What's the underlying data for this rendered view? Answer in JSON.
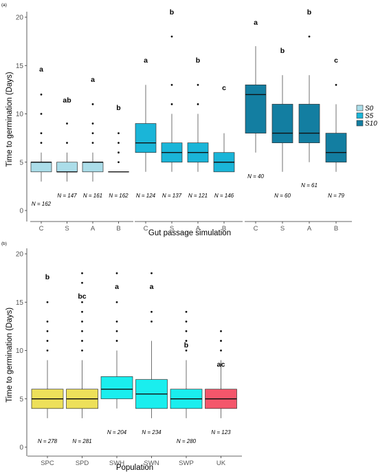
{
  "chart_data": [
    {
      "type": "boxplot",
      "panel_label": "(a)",
      "xlabel": "Gut passage simulation",
      "ylabel": "Time to germination (Days)",
      "ylim": [
        0,
        20
      ],
      "yticks": [
        0,
        5,
        10,
        15,
        20
      ],
      "legend": {
        "position": "right",
        "entries": [
          {
            "label": "S0",
            "color": "#abdde9"
          },
          {
            "label": "S5",
            "color": "#1ab5d8"
          },
          {
            "label": "S10",
            "color": "#137ea1"
          }
        ]
      },
      "groups": [
        {
          "name": "S0",
          "color": "#abdde9",
          "boxes": [
            {
              "category": "C",
              "q1": 4,
              "median": 5,
              "q3": 5,
              "whisker_low": 3,
              "whisker_high": 6,
              "outliers": [
                7,
                8,
                10,
                12
              ],
              "n_label": "N = 162",
              "letter": "a"
            },
            {
              "category": "S",
              "q1": 4,
              "median": 4,
              "q3": 5,
              "whisker_low": 3,
              "whisker_high": 6,
              "outliers": [
                7,
                9
              ],
              "n_label": "N = 147",
              "letter": "ab"
            },
            {
              "category": "A",
              "q1": 4,
              "median": 5,
              "q3": 5,
              "whisker_low": 3,
              "whisker_high": 6,
              "outliers": [
                7,
                8,
                9,
                11
              ],
              "n_label": "N = 161",
              "letter": "a"
            },
            {
              "category": "B",
              "q1": 4,
              "median": 4,
              "q3": 4,
              "whisker_low": 4,
              "whisker_high": 4,
              "outliers": [
                5,
                6,
                7,
                8
              ],
              "n_label": "N = 162",
              "letter": "b"
            }
          ]
        },
        {
          "name": "S5",
          "color": "#1ab5d8",
          "boxes": [
            {
              "category": "C",
              "q1": 6,
              "median": 7,
              "q3": 9,
              "whisker_low": 4,
              "whisker_high": 13,
              "outliers": [],
              "n_label": "N = 124",
              "letter": "a"
            },
            {
              "category": "S",
              "q1": 5,
              "median": 6,
              "q3": 7,
              "whisker_low": 4,
              "whisker_high": 10,
              "outliers": [
                11,
                13,
                18
              ],
              "n_label": "N = 137",
              "letter": "b"
            },
            {
              "category": "A",
              "q1": 5,
              "median": 6,
              "q3": 7,
              "whisker_low": 4,
              "whisker_high": 10,
              "outliers": [
                11,
                13
              ],
              "n_label": "N = 121",
              "letter": "b"
            },
            {
              "category": "B",
              "q1": 4,
              "median": 5,
              "q3": 6,
              "whisker_low": 4,
              "whisker_high": 8,
              "outliers": [],
              "n_label": "N = 146",
              "letter": "c"
            }
          ]
        },
        {
          "name": "S10",
          "color": "#137ea1",
          "boxes": [
            {
              "category": "C",
              "q1": 8,
              "median": 12,
              "q3": 13,
              "whisker_low": 6,
              "whisker_high": 17,
              "outliers": [],
              "n_label": "N = 40",
              "letter": "a"
            },
            {
              "category": "S",
              "q1": 7,
              "median": 8,
              "q3": 11,
              "whisker_low": 4,
              "whisker_high": 14,
              "outliers": [],
              "n_label": "N = 60",
              "letter": "b"
            },
            {
              "category": "A",
              "q1": 7,
              "median": 8,
              "q3": 11,
              "whisker_low": 5,
              "whisker_high": 14,
              "outliers": [
                18
              ],
              "n_label": "N = 61",
              "letter": "b"
            },
            {
              "category": "B",
              "q1": 5,
              "median": 6,
              "q3": 8,
              "whisker_low": 4,
              "whisker_high": 11,
              "outliers": [
                13
              ],
              "n_label": "N = 79",
              "letter": "c"
            }
          ]
        }
      ]
    },
    {
      "type": "boxplot",
      "panel_label": "(b)",
      "xlabel": "Population",
      "ylabel": "Time to germination (Days)",
      "ylim": [
        0,
        20
      ],
      "yticks": [
        0,
        5,
        10,
        15,
        20
      ],
      "boxes": [
        {
          "category": "SPC",
          "color": "#ede05a",
          "q1": 4,
          "median": 5,
          "q3": 6,
          "whisker_low": 3,
          "whisker_high": 9,
          "outliers": [
            10,
            11,
            12,
            13,
            15
          ],
          "n_label": "N = 278",
          "letter": "b"
        },
        {
          "category": "SPD",
          "color": "#ede05a",
          "q1": 4,
          "median": 5,
          "q3": 6,
          "whisker_low": 3,
          "whisker_high": 9,
          "outliers": [
            10,
            11,
            12,
            13,
            14,
            15,
            17,
            18
          ],
          "n_label": "N = 281",
          "letter": "bc"
        },
        {
          "category": "SWH",
          "color": "#1aeeee",
          "q1": 5,
          "median": 6,
          "q3": 7.3,
          "whisker_low": 4,
          "whisker_high": 10,
          "outliers": [
            11,
            12,
            13,
            15,
            18
          ],
          "n_label": "N = 204",
          "letter": "a"
        },
        {
          "category": "SWN",
          "color": "#1aeeee",
          "q1": 4,
          "median": 5.5,
          "q3": 7,
          "whisker_low": 3,
          "whisker_high": 11,
          "outliers": [
            13,
            14,
            18
          ],
          "n_label": "N = 234",
          "letter": "a"
        },
        {
          "category": "SWP",
          "color": "#1aeeee",
          "q1": 4,
          "median": 5,
          "q3": 6,
          "whisker_low": 3,
          "whisker_high": 9,
          "outliers": [
            10,
            11,
            12,
            13,
            14
          ],
          "n_label": "N = 280",
          "letter": "b"
        },
        {
          "category": "UK",
          "color": "#f4566b",
          "q1": 4,
          "median": 5,
          "q3": 6,
          "whisker_low": 3,
          "whisker_high": 9,
          "outliers": [
            10,
            11,
            12
          ],
          "n_label": "N = 123",
          "letter": "ac"
        }
      ]
    }
  ]
}
